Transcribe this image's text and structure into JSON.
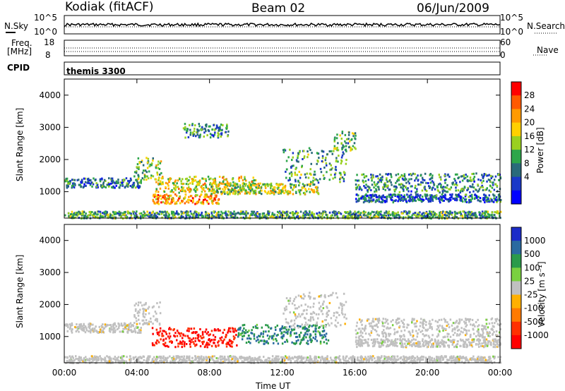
{
  "header": {
    "station": "Kodiak (fitACF)",
    "beam": "Beam 02",
    "date": "06/Jun/2009"
  },
  "top_panels": {
    "nsky_label": "N.Sky",
    "nsearch_label": "N.Search",
    "noise_ticks_left": [
      "10^5",
      "10^0"
    ],
    "noise_ticks_right": [
      "10^5",
      "10^0"
    ],
    "freq_label_line1": "Freq.",
    "freq_label_line2": "[MHz]",
    "freq_ticks": [
      "18",
      "8"
    ],
    "nave_label": "Nave",
    "nave_ticks": [
      "60",
      "0"
    ],
    "cpid_label": "CPID",
    "cpid_value": "themis 3300"
  },
  "chart_data": [
    {
      "type": "heatmap",
      "name": "power",
      "ylabel": "Slant Range [km]",
      "yticks": [
        "4000",
        "3000",
        "2000",
        "1000"
      ],
      "ylim": [
        180,
        4500
      ],
      "xlim": [
        0,
        24
      ],
      "colorbar": {
        "label": "Power [dB]",
        "ticks": [
          "28",
          "24",
          "20",
          "16",
          "12",
          "8",
          "4"
        ],
        "colors": [
          "#ff0000",
          "#ff5a00",
          "#ff9a00",
          "#ffd000",
          "#9ad020",
          "#2ea64a",
          "#2a6a7a",
          "#1a38c8",
          "#0000ff"
        ]
      },
      "bands": [
        {
          "t0": 0.0,
          "t1": 24.0,
          "r0": 200,
          "r1": 420,
          "level": 0.35
        },
        {
          "t0": 0.0,
          "t1": 4.2,
          "r0": 1150,
          "r1": 1450,
          "level": 0.25
        },
        {
          "t0": 3.8,
          "t1": 5.3,
          "r0": 1400,
          "r1": 2100,
          "level": 0.45
        },
        {
          "t0": 4.8,
          "t1": 8.5,
          "r0": 650,
          "r1": 950,
          "level": 0.75
        },
        {
          "t0": 5.0,
          "t1": 10.5,
          "r0": 1000,
          "r1": 1500,
          "level": 0.6
        },
        {
          "t0": 8.0,
          "t1": 14.0,
          "r0": 950,
          "r1": 1300,
          "level": 0.5
        },
        {
          "t0": 6.5,
          "t1": 9.0,
          "r0": 2700,
          "r1": 3150,
          "level": 0.3
        },
        {
          "t0": 12.0,
          "t1": 15.5,
          "r0": 1300,
          "r1": 2400,
          "level": 0.35
        },
        {
          "t0": 14.8,
          "t1": 16.0,
          "r0": 2300,
          "r1": 2900,
          "level": 0.4
        },
        {
          "t0": 16.0,
          "t1": 24.0,
          "r0": 1000,
          "r1": 1600,
          "level": 0.3
        },
        {
          "t0": 16.0,
          "t1": 24.0,
          "r0": 700,
          "r1": 950,
          "level": 0.2
        }
      ]
    },
    {
      "type": "heatmap",
      "name": "velocity",
      "ylabel": "Slant Range [km]",
      "yticks": [
        "4000",
        "3000",
        "2000",
        "1000"
      ],
      "ylim": [
        180,
        4500
      ],
      "xlim": [
        0,
        24
      ],
      "colorbar": {
        "label": "Velocity [m s⁻¹]",
        "ticks": [
          "1000",
          "500",
          "100",
          "25",
          "-25",
          "-100",
          "-500",
          "-1000"
        ],
        "colors": [
          "#1c2cc8",
          "#2a6aa0",
          "#2a9a4a",
          "#7ad040",
          "#c0c0c0",
          "#ffb000",
          "#ff7a00",
          "#ff3000",
          "#ff0000"
        ]
      },
      "bands": [
        {
          "t0": 0.0,
          "t1": 24.0,
          "r0": 200,
          "r1": 420,
          "level": 0.0
        },
        {
          "t0": 0.0,
          "t1": 4.2,
          "r0": 1150,
          "r1": 1450,
          "level": 0.0
        },
        {
          "t0": 3.8,
          "t1": 5.3,
          "r0": 1400,
          "r1": 2100,
          "level": 0.0
        },
        {
          "t0": 4.8,
          "t1": 9.5,
          "r0": 700,
          "r1": 1300,
          "level": -0.45
        },
        {
          "t0": 9.5,
          "t1": 14.5,
          "r0": 800,
          "r1": 1400,
          "level": 0.3
        },
        {
          "t0": 12.0,
          "t1": 15.5,
          "r0": 1300,
          "r1": 2400,
          "level": 0.0
        },
        {
          "t0": 16.0,
          "t1": 24.0,
          "r0": 1000,
          "r1": 1600,
          "level": 0.0
        },
        {
          "t0": 16.0,
          "t1": 24.0,
          "r0": 700,
          "r1": 950,
          "level": 0.0
        }
      ]
    }
  ],
  "x_axis": {
    "ticks": [
      "00:00",
      "04:00",
      "08:00",
      "12:00",
      "16:00",
      "20:00",
      "00:00"
    ],
    "label": "Time UT"
  }
}
